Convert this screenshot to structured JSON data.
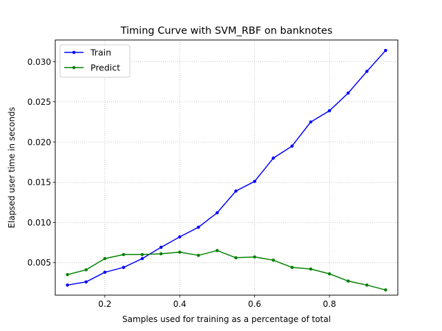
{
  "chart_data": {
    "type": "line",
    "title": "Timing Curve with SVM_RBF on banknotes",
    "xlabel": "Samples used for training as a percentage of total",
    "ylabel": "Elapsed user time in seconds",
    "xlim": [
      0.0675,
      0.9825
    ],
    "ylim": [
      0.00095,
      0.0327
    ],
    "x_ticks": [
      0.2,
      0.4,
      0.6,
      0.8
    ],
    "x_tick_labels": [
      "0.2",
      "0.4",
      "0.6",
      "0.8"
    ],
    "y_ticks": [
      0.005,
      0.01,
      0.015,
      0.02,
      0.025,
      0.03
    ],
    "y_tick_labels": [
      "0.005",
      "0.010",
      "0.015",
      "0.020",
      "0.025",
      "0.030"
    ],
    "grid": true,
    "legend_position": "top-left",
    "x": [
      0.1,
      0.15,
      0.2,
      0.25,
      0.3,
      0.35,
      0.4,
      0.45,
      0.5,
      0.55,
      0.6,
      0.65,
      0.7,
      0.75,
      0.8,
      0.85,
      0.9,
      0.95
    ],
    "series": [
      {
        "name": "Train",
        "color": "#0000ff",
        "values": [
          0.0022,
          0.0026,
          0.0038,
          0.0044,
          0.0055,
          0.0069,
          0.0082,
          0.0094,
          0.0112,
          0.0139,
          0.0151,
          0.018,
          0.0195,
          0.0225,
          0.0239,
          0.0261,
          0.0288,
          0.0314
        ]
      },
      {
        "name": "Predict",
        "color": "#008000",
        "values": [
          0.0035,
          0.0041,
          0.0055,
          0.006,
          0.006,
          0.0061,
          0.0063,
          0.0059,
          0.0065,
          0.0056,
          0.0057,
          0.0053,
          0.0044,
          0.0042,
          0.0036,
          0.0027,
          0.0022,
          0.0016
        ]
      }
    ]
  }
}
